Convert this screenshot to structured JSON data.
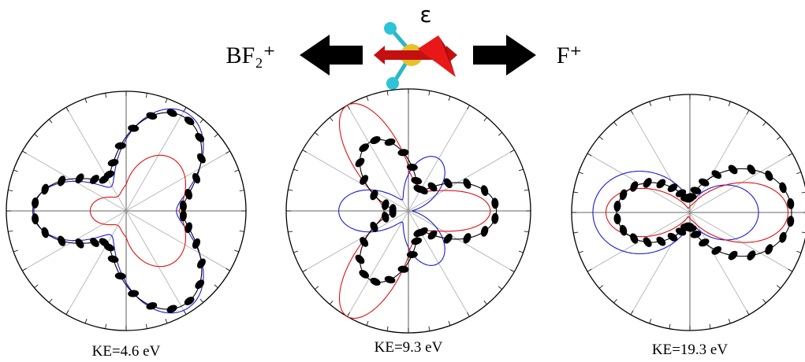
{
  "header": {
    "left_label": "BF₂⁺",
    "right_label": "F⁺",
    "field_label": "ε"
  },
  "panels": [
    {
      "label": "KE=4.6 eV"
    },
    {
      "label": "KE=9.3 eV"
    },
    {
      "label": "KE=19.3 eV"
    }
  ]
}
